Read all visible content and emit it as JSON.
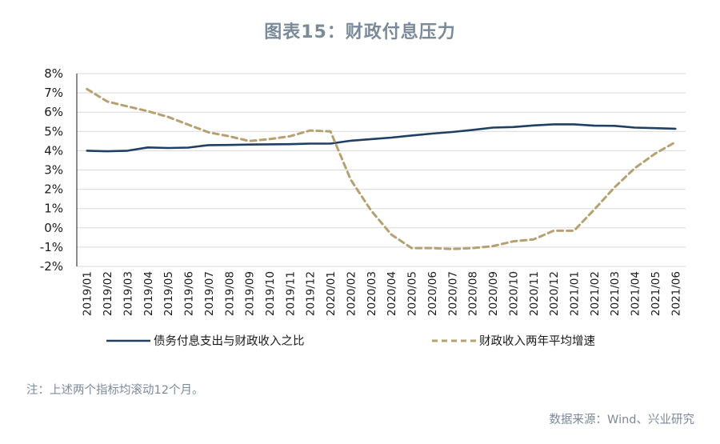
{
  "title": "图表15：财政付息压力",
  "note": "注：上述两个指标均滚动12个月。",
  "source": "数据来源：Wind、兴业研究",
  "chart_data": {
    "type": "line",
    "categories": [
      "2019/01",
      "2019/02",
      "2019/03",
      "2019/04",
      "2019/05",
      "2019/06",
      "2019/07",
      "2019/08",
      "2019/09",
      "2019/10",
      "2019/11",
      "2019/12",
      "2020/01",
      "2020/02",
      "2020/03",
      "2020/04",
      "2020/05",
      "2020/06",
      "2020/07",
      "2020/08",
      "2020/09",
      "2020/10",
      "2020/11",
      "2020/12",
      "2021/01",
      "2021/02",
      "2021/03",
      "2021/04",
      "2021/05",
      "2021/06"
    ],
    "y_ticks": [
      "8%",
      "7%",
      "6%",
      "5%",
      "4%",
      "3%",
      "2%",
      "1%",
      "0%",
      "-1%",
      "-2%"
    ],
    "ylim": [
      -2,
      8
    ],
    "grid": true,
    "legend_position": "bottom",
    "series": [
      {
        "name": "债务付息支出与财政收入之比",
        "style": "solid",
        "color": "#1f3f63",
        "values": [
          4.0,
          3.97,
          4.0,
          4.17,
          4.14,
          4.16,
          4.29,
          4.3,
          4.32,
          4.33,
          4.34,
          4.37,
          4.37,
          4.52,
          4.6,
          4.68,
          4.79,
          4.89,
          4.97,
          5.08,
          5.2,
          5.23,
          5.31,
          5.37,
          5.37,
          5.3,
          5.29,
          5.2,
          5.17,
          5.14
        ]
      },
      {
        "name": "财政收入两年平均增速",
        "style": "dashed",
        "color": "#b5a171",
        "values": [
          7.2,
          6.55,
          6.3,
          6.05,
          5.75,
          5.35,
          4.95,
          4.75,
          4.5,
          4.6,
          4.75,
          5.05,
          5.0,
          2.5,
          0.9,
          -0.35,
          -1.05,
          -1.05,
          -1.1,
          -1.05,
          -0.95,
          -0.7,
          -0.6,
          -0.15,
          -0.15,
          0.95,
          2.1,
          3.1,
          3.85,
          4.45
        ]
      }
    ]
  }
}
